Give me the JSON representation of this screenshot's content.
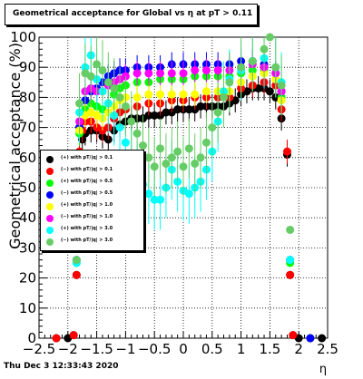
{
  "title": "Geometrical acceptance for Global vs   η at pT > 0.11",
  "footer": "Thu Dec  3 12:33:43 2020",
  "chart_data": {
    "type": "scatter",
    "xlabel": "η",
    "ylabel": "Geometrical acceptance (%)",
    "xlim": [
      -2.5,
      2.5
    ],
    "ylim": [
      0,
      100
    ],
    "x_ticks": [
      "−2.5",
      "−2",
      "−1.5",
      "−1",
      "−0.5",
      "0",
      "0.5",
      "1",
      "1.5",
      "2",
      "2.5"
    ],
    "y_ticks": [
      "0",
      "10",
      "20",
      "30",
      "40",
      "50",
      "60",
      "70",
      "80",
      "90",
      "100"
    ],
    "grid": true,
    "legend_position": "center-left",
    "series": [
      {
        "name": "(+) with pT/|q| > 0.1",
        "color": "#000000",
        "points": [
          [
            -2.2,
            0
          ],
          [
            -2.0,
            0
          ],
          [
            -1.9,
            1
          ],
          [
            -1.85,
            21
          ],
          [
            -1.8,
            60
          ],
          [
            -1.75,
            66
          ],
          [
            -1.7,
            68
          ],
          [
            -1.6,
            69
          ],
          [
            -1.5,
            69
          ],
          [
            -1.4,
            67
          ],
          [
            -1.3,
            66
          ],
          [
            -1.2,
            69
          ],
          [
            -1.1,
            71
          ],
          [
            -1.0,
            72
          ],
          [
            -0.9,
            73
          ],
          [
            -0.8,
            73
          ],
          [
            -0.7,
            73
          ],
          [
            -0.6,
            74
          ],
          [
            -0.5,
            74
          ],
          [
            -0.4,
            74
          ],
          [
            -0.3,
            75
          ],
          [
            -0.2,
            75
          ],
          [
            -0.1,
            76
          ],
          [
            0.0,
            76
          ],
          [
            0.1,
            76
          ],
          [
            0.2,
            76
          ],
          [
            0.3,
            77
          ],
          [
            0.4,
            77
          ],
          [
            0.5,
            77
          ],
          [
            0.6,
            77
          ],
          [
            0.7,
            77
          ],
          [
            0.8,
            78
          ],
          [
            0.9,
            79
          ],
          [
            1.0,
            81
          ],
          [
            1.1,
            82
          ],
          [
            1.2,
            83
          ],
          [
            1.3,
            83
          ],
          [
            1.4,
            83
          ],
          [
            1.5,
            82
          ],
          [
            1.6,
            80
          ],
          [
            1.7,
            73
          ],
          [
            1.8,
            61
          ],
          [
            1.85,
            21
          ],
          [
            1.9,
            1
          ],
          [
            2.0,
            0
          ],
          [
            2.2,
            0
          ],
          [
            2.4,
            0
          ]
        ]
      },
      {
        "name": "(−) with pT/|q| > 0.1",
        "color": "#ff0000",
        "points": [
          [
            -2.2,
            0
          ],
          [
            -1.9,
            1
          ],
          [
            -1.85,
            21
          ],
          [
            -1.8,
            62
          ],
          [
            -1.75,
            69
          ],
          [
            -1.7,
            72
          ],
          [
            -1.6,
            72
          ],
          [
            -1.5,
            70
          ],
          [
            -1.4,
            69
          ],
          [
            -1.3,
            70
          ],
          [
            -1.2,
            73
          ],
          [
            -1.1,
            75
          ],
          [
            -1.0,
            76
          ],
          [
            -0.8,
            77
          ],
          [
            -0.6,
            78
          ],
          [
            -0.4,
            78
          ],
          [
            -0.2,
            79
          ],
          [
            0.0,
            79
          ],
          [
            0.2,
            80
          ],
          [
            0.4,
            80
          ],
          [
            0.6,
            80
          ],
          [
            0.8,
            80
          ],
          [
            1.0,
            83
          ],
          [
            1.2,
            84
          ],
          [
            1.4,
            85
          ],
          [
            1.6,
            84
          ],
          [
            1.7,
            76
          ],
          [
            1.8,
            62
          ],
          [
            1.85,
            21
          ],
          [
            1.9,
            1
          ],
          [
            2.2,
            0
          ]
        ]
      },
      {
        "name": "(+) with pT/|q| > 0.5",
        "color": "#00ff00",
        "points": [
          [
            -1.85,
            25
          ],
          [
            -1.8,
            68
          ],
          [
            -1.7,
            76
          ],
          [
            -1.6,
            78
          ],
          [
            -1.5,
            77
          ],
          [
            -1.4,
            76
          ],
          [
            -1.3,
            78
          ],
          [
            -1.2,
            81
          ],
          [
            -1.1,
            83
          ],
          [
            -1.0,
            84
          ],
          [
            -0.8,
            85
          ],
          [
            -0.6,
            85
          ],
          [
            -0.4,
            86
          ],
          [
            -0.2,
            86
          ],
          [
            0.0,
            86
          ],
          [
            0.2,
            87
          ],
          [
            0.4,
            87
          ],
          [
            0.6,
            87
          ],
          [
            0.8,
            87
          ],
          [
            1.0,
            88
          ],
          [
            1.2,
            89
          ],
          [
            1.4,
            89
          ],
          [
            1.6,
            88
          ],
          [
            1.7,
            80
          ],
          [
            1.85,
            25
          ],
          [
            2.2,
            0
          ]
        ]
      },
      {
        "name": "(−) with pT/|q| > 0.5",
        "color": "#0000ff",
        "points": [
          [
            -1.85,
            26
          ],
          [
            -1.8,
            70
          ],
          [
            -1.7,
            79
          ],
          [
            -1.6,
            82
          ],
          [
            -1.5,
            83
          ],
          [
            -1.4,
            85
          ],
          [
            -1.3,
            87
          ],
          [
            -1.2,
            88
          ],
          [
            -1.1,
            89
          ],
          [
            -1.0,
            89
          ],
          [
            -0.8,
            90
          ],
          [
            -0.6,
            90
          ],
          [
            -0.4,
            90
          ],
          [
            -0.2,
            91
          ],
          [
            0.0,
            91
          ],
          [
            0.2,
            91
          ],
          [
            0.4,
            91
          ],
          [
            0.6,
            91
          ],
          [
            0.8,
            91
          ],
          [
            1.0,
            92
          ],
          [
            1.2,
            92
          ],
          [
            1.4,
            91
          ],
          [
            1.6,
            88
          ],
          [
            1.7,
            82
          ],
          [
            1.85,
            26
          ],
          [
            2.2,
            0
          ]
        ]
      },
      {
        "name": "(+) with pT/|q| > 1.0",
        "color": "#ffff00",
        "points": [
          [
            -1.8,
            69
          ],
          [
            -1.7,
            74
          ],
          [
            -1.6,
            75
          ],
          [
            -1.5,
            74
          ],
          [
            -1.4,
            73
          ],
          [
            -1.3,
            75
          ],
          [
            -1.2,
            77
          ],
          [
            -1.1,
            79
          ],
          [
            -1.0,
            80
          ],
          [
            -0.8,
            80
          ],
          [
            -0.6,
            81
          ],
          [
            -0.4,
            81
          ],
          [
            -0.2,
            81
          ],
          [
            0.0,
            81
          ],
          [
            0.2,
            81
          ],
          [
            0.4,
            82
          ],
          [
            0.6,
            82
          ],
          [
            0.8,
            82
          ],
          [
            1.0,
            85
          ],
          [
            1.2,
            87
          ],
          [
            1.4,
            88
          ],
          [
            1.6,
            86
          ],
          [
            1.7,
            79
          ]
        ]
      },
      {
        "name": "(−) with pT/|q| > 1.0",
        "color": "#ff00ff",
        "points": [
          [
            -1.8,
            72
          ],
          [
            -1.7,
            82
          ],
          [
            -1.6,
            83
          ],
          [
            -1.5,
            82
          ],
          [
            -1.4,
            82
          ],
          [
            -1.3,
            84
          ],
          [
            -1.2,
            85
          ],
          [
            -1.1,
            86
          ],
          [
            -1.0,
            87
          ],
          [
            -0.8,
            88
          ],
          [
            -0.6,
            88
          ],
          [
            -0.4,
            88
          ],
          [
            -0.2,
            88
          ],
          [
            0.0,
            88
          ],
          [
            0.2,
            89
          ],
          [
            0.4,
            89
          ],
          [
            0.6,
            89
          ],
          [
            0.8,
            89
          ],
          [
            1.0,
            90
          ],
          [
            1.2,
            91
          ],
          [
            1.4,
            90
          ],
          [
            1.6,
            88
          ],
          [
            1.7,
            82
          ]
        ]
      },
      {
        "name": "(+) with pT/|q| > 3.0",
        "color": "#00ffff",
        "points": [
          [
            -1.85,
            25
          ],
          [
            -1.8,
            75
          ],
          [
            -1.7,
            90
          ],
          [
            -1.6,
            94
          ],
          [
            -1.5,
            86
          ],
          [
            -1.4,
            82
          ],
          [
            -1.3,
            78
          ],
          [
            -1.2,
            74
          ],
          [
            -1.1,
            70
          ],
          [
            -1.0,
            65
          ],
          [
            -0.9,
            60
          ],
          [
            -0.8,
            55
          ],
          [
            -0.7,
            51
          ],
          [
            -0.6,
            48
          ],
          [
            -0.5,
            46
          ],
          [
            -0.4,
            46
          ],
          [
            -0.3,
            50
          ],
          [
            -0.2,
            56
          ],
          [
            -0.1,
            52
          ],
          [
            0.0,
            49
          ],
          [
            0.1,
            48
          ],
          [
            0.2,
            50
          ],
          [
            0.3,
            52
          ],
          [
            0.4,
            56
          ],
          [
            0.5,
            62
          ],
          [
            0.6,
            72
          ],
          [
            0.7,
            82
          ],
          [
            0.8,
            86
          ],
          [
            1.0,
            89
          ],
          [
            1.2,
            92
          ],
          [
            1.4,
            93
          ],
          [
            1.6,
            90
          ],
          [
            1.7,
            85
          ],
          [
            1.85,
            26
          ]
        ]
      },
      {
        "name": "(−) with pT/|q| > 3.0",
        "color": "#66cc66",
        "points": [
          [
            -1.85,
            26
          ],
          [
            -1.8,
            78
          ],
          [
            -1.7,
            88
          ],
          [
            -1.6,
            87
          ],
          [
            -1.5,
            91
          ],
          [
            -1.4,
            89
          ],
          [
            -1.3,
            85
          ],
          [
            -1.2,
            83
          ],
          [
            -1.1,
            80
          ],
          [
            -1.0,
            77
          ],
          [
            -0.9,
            72
          ],
          [
            -0.8,
            68
          ],
          [
            -0.7,
            64
          ],
          [
            -0.6,
            60
          ],
          [
            -0.5,
            57
          ],
          [
            -0.4,
            63
          ],
          [
            -0.3,
            58
          ],
          [
            -0.2,
            60
          ],
          [
            -0.1,
            62
          ],
          [
            0.0,
            57
          ],
          [
            0.1,
            63
          ],
          [
            0.2,
            58
          ],
          [
            0.3,
            60
          ],
          [
            0.4,
            65
          ],
          [
            0.5,
            70
          ],
          [
            0.6,
            75
          ],
          [
            0.7,
            80
          ],
          [
            0.8,
            85
          ],
          [
            1.0,
            90
          ],
          [
            1.2,
            92
          ],
          [
            1.4,
            96
          ],
          [
            1.5,
            100
          ],
          [
            1.6,
            90
          ],
          [
            1.7,
            84
          ],
          [
            1.85,
            36
          ]
        ]
      }
    ]
  }
}
